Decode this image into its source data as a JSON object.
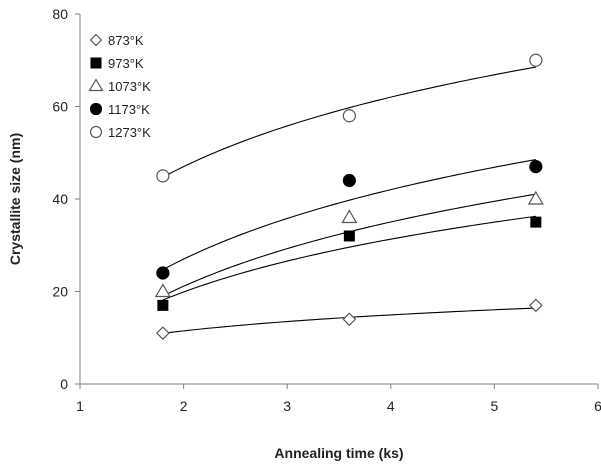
{
  "chart_data": {
    "type": "scatter",
    "title": "",
    "xlabel": "Annealing time (ks)",
    "ylabel": "Crystallite size (nm)",
    "xlim": [
      1,
      6
    ],
    "ylim": [
      0,
      80
    ],
    "xticks": [
      1,
      2,
      3,
      4,
      5,
      6
    ],
    "yticks": [
      0,
      20,
      40,
      60,
      80
    ],
    "grid": false,
    "legend_position": "top-left",
    "trendlines": "logarithmic fit per series",
    "series": [
      {
        "name": "873°K",
        "marker": "diamond-open",
        "color": "#555555",
        "x": [
          1.8,
          3.6,
          5.4
        ],
        "y": [
          11,
          14,
          17
        ],
        "fit": [
          11,
          14.3,
          16.5
        ]
      },
      {
        "name": "973°K",
        "marker": "square-filled",
        "color": "#000000",
        "x": [
          1.8,
          3.6,
          5.4
        ],
        "y": [
          17,
          32,
          35
        ],
        "fit": [
          18,
          30,
          36
        ]
      },
      {
        "name": "1073°K",
        "marker": "triangle-open",
        "color": "#555555",
        "x": [
          1.8,
          3.6,
          5.4
        ],
        "y": [
          20,
          36,
          40
        ],
        "fit": [
          19,
          33,
          41
        ]
      },
      {
        "name": "1173°K",
        "marker": "circle-filled",
        "color": "#000000",
        "x": [
          1.8,
          3.6,
          5.4
        ],
        "y": [
          24,
          44,
          47
        ],
        "fit": [
          25,
          39,
          49
        ]
      },
      {
        "name": "1273°K",
        "marker": "circle-open",
        "color": "#555555",
        "x": [
          1.8,
          3.6,
          5.4
        ],
        "y": [
          45,
          58,
          70
        ],
        "fit": [
          45,
          59,
          69
        ]
      }
    ]
  }
}
